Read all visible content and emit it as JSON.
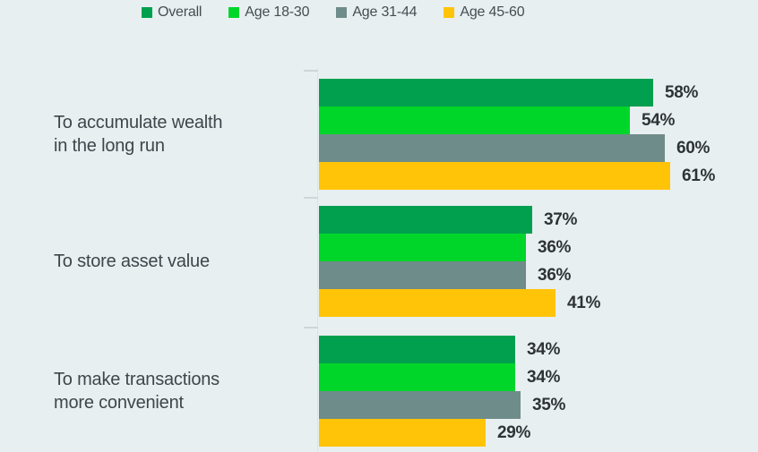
{
  "background_color": "#E8EFF1",
  "chart_data": {
    "type": "bar",
    "orientation": "horizontal",
    "title": "",
    "xlabel": "",
    "ylabel": "",
    "xlim": [
      0,
      100
    ],
    "grid": false,
    "legend_position": "top",
    "value_suffix": "%",
    "categories": [
      "To accumulate wealth in the long run",
      "To store asset value",
      "To make transactions more convenient"
    ],
    "category_display_lines": [
      [
        "To accumulate wealth",
        "in the long run"
      ],
      [
        "To store asset value"
      ],
      [
        "To make transactions",
        "more convenient"
      ]
    ],
    "series": [
      {
        "name": "Overall",
        "color": "#00A04E",
        "values": [
          58,
          37,
          34
        ]
      },
      {
        "name": "Age 18-30",
        "color": "#00D62A",
        "values": [
          54,
          36,
          34
        ]
      },
      {
        "name": "Age 31-44",
        "color": "#6E8C8A",
        "values": [
          60,
          36,
          35
        ]
      },
      {
        "name": "Age 45-60",
        "color": "#FFC408",
        "values": [
          61,
          41,
          29
        ]
      }
    ]
  },
  "colors": {
    "background": "#E8EFF1",
    "axis": "#DCE3E5",
    "tick": "#CDD6D8",
    "category_text": "#3E464B",
    "legend_text": "#464D52",
    "value_text": "#2E3337"
  }
}
